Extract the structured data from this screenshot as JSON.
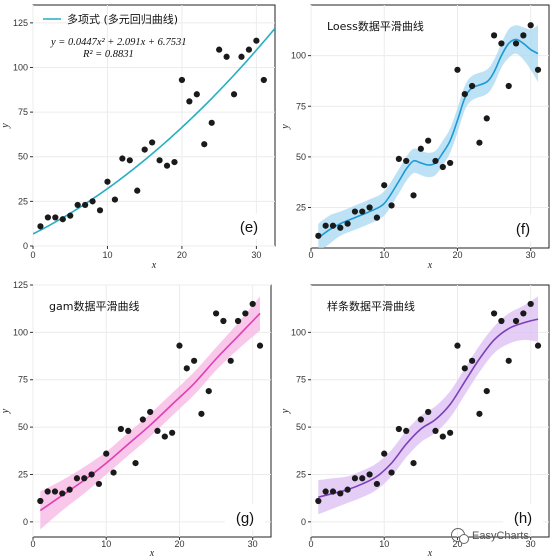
{
  "watermark": "EasyCharts",
  "chart_data": [
    {
      "type": "scatter",
      "panel_label": "(e)",
      "legend_label": "多项式 (多元回归曲线)",
      "equation": "y = 0.0447x² + 2.091x + 6.7531",
      "r_squared": "R² = 0.8831",
      "xlabel": "x",
      "ylabel": "y",
      "xlim": [
        0,
        32.5
      ],
      "ylim": [
        0,
        135
      ],
      "xticks": [
        0,
        10,
        20,
        30
      ],
      "yticks": [
        0,
        25,
        50,
        75,
        100,
        125
      ],
      "line_color": "#26aec2",
      "band_color": null,
      "fit": {
        "kind": "poly",
        "coef": [
          6.7531,
          2.091,
          0.0447
        ]
      },
      "points": {
        "x": [
          1,
          2,
          3,
          4,
          5,
          6,
          7,
          8,
          9,
          10,
          11,
          12,
          13,
          14,
          15,
          16,
          17,
          18,
          19,
          20,
          21,
          22,
          23,
          24,
          25,
          26,
          27,
          28,
          29,
          30,
          31
        ],
        "y": [
          11,
          16,
          16,
          15,
          17,
          23,
          23,
          25,
          20,
          36,
          26,
          49,
          48,
          31,
          54,
          58,
          48,
          45,
          47,
          93,
          81,
          85,
          57,
          69,
          110,
          106,
          85,
          106,
          110,
          115,
          93
        ]
      }
    },
    {
      "type": "scatter",
      "panel_label": "(f)",
      "title": "Loess数据平滑曲线",
      "xlabel": "x",
      "ylabel": "y",
      "xlim": [
        0,
        32.5
      ],
      "ylim": [
        5,
        125
      ],
      "xticks": [
        0,
        10,
        20,
        30
      ],
      "yticks": [
        25,
        50,
        75,
        100
      ],
      "line_color": "#1b9ad6",
      "band_color": "#a8d8f2",
      "fit": {
        "kind": "curve",
        "x": [
          1,
          2.5,
          4,
          6,
          8,
          10,
          12,
          13,
          14,
          15,
          16,
          17,
          18,
          19,
          20,
          21,
          22,
          24,
          25,
          26,
          27,
          28,
          29,
          30,
          31
        ],
        "y": [
          10,
          14,
          17,
          20,
          23,
          27,
          38,
          44,
          48,
          47,
          46,
          47,
          52,
          58,
          68,
          79,
          84,
          87,
          92,
          100,
          106,
          108,
          106,
          103,
          101
        ],
        "se": [
          7,
          7,
          6,
          6,
          6,
          6,
          6,
          6,
          6,
          6,
          6,
          6,
          6,
          6,
          6,
          6,
          6,
          6,
          6,
          6,
          7,
          7,
          8,
          10,
          14
        ]
      },
      "points": {
        "x": [
          1,
          2,
          3,
          4,
          5,
          6,
          7,
          8,
          9,
          10,
          11,
          12,
          13,
          14,
          15,
          16,
          17,
          18,
          19,
          20,
          21,
          22,
          23,
          24,
          25,
          26,
          27,
          28,
          29,
          30,
          31
        ],
        "y": [
          11,
          16,
          16,
          15,
          17,
          23,
          23,
          25,
          20,
          36,
          26,
          49,
          48,
          31,
          54,
          58,
          48,
          45,
          47,
          93,
          81,
          85,
          57,
          69,
          110,
          106,
          85,
          106,
          110,
          115,
          93
        ]
      }
    },
    {
      "type": "scatter",
      "panel_label": "(g)",
      "title": "gam数据平滑曲线",
      "xlabel": "x",
      "ylabel": "y",
      "xlim": [
        0,
        32.5
      ],
      "ylim": [
        -8,
        125
      ],
      "xticks": [
        0,
        10,
        20,
        30
      ],
      "yticks": [
        0,
        25,
        50,
        75,
        100,
        125
      ],
      "line_color": "#e23fb4",
      "band_color": "#f6b4e1",
      "fit": {
        "kind": "curve",
        "x": [
          1,
          4,
          7,
          10,
          13,
          16,
          19,
          22,
          25,
          28,
          31
        ],
        "y": [
          6,
          14,
          22,
          31,
          41,
          51,
          62,
          73,
          86,
          98,
          110
        ],
        "se": [
          10,
          8,
          7,
          6,
          6,
          6,
          6,
          6,
          6,
          7,
          9
        ]
      },
      "points": {
        "x": [
          1,
          2,
          3,
          4,
          5,
          6,
          7,
          8,
          9,
          10,
          11,
          12,
          13,
          14,
          15,
          16,
          17,
          18,
          19,
          20,
          21,
          22,
          23,
          24,
          25,
          26,
          27,
          28,
          29,
          30,
          31
        ],
        "y": [
          11,
          16,
          16,
          15,
          17,
          23,
          23,
          25,
          20,
          36,
          26,
          49,
          48,
          31,
          54,
          58,
          48,
          45,
          47,
          93,
          81,
          85,
          57,
          69,
          110,
          106,
          85,
          106,
          110,
          115,
          93
        ]
      }
    },
    {
      "type": "scatter",
      "panel_label": "(h)",
      "title": "样条数据平滑曲线",
      "xlabel": "x",
      "ylabel": "y",
      "xlim": [
        0,
        32.5
      ],
      "ylim": [
        -8,
        125
      ],
      "xticks": [
        0,
        10,
        20,
        30
      ],
      "yticks": [
        0,
        25,
        50,
        75,
        100
      ],
      "line_color": "#7d3fb8",
      "band_color": "#dcbdf2",
      "fit": {
        "kind": "curve",
        "x": [
          1,
          3,
          5,
          7,
          9,
          11,
          13,
          15,
          17,
          19,
          21,
          23,
          25,
          27,
          29,
          31
        ],
        "y": [
          13,
          15,
          17,
          20,
          24,
          31,
          41,
          49,
          54,
          62,
          74,
          86,
          96,
          102,
          105,
          107
        ],
        "se": [
          9,
          8,
          7,
          7,
          7,
          7,
          7,
          7,
          7,
          7,
          7,
          7,
          7,
          8,
          9,
          12
        ]
      },
      "points": {
        "x": [
          1,
          2,
          3,
          4,
          5,
          6,
          7,
          8,
          9,
          10,
          11,
          12,
          13,
          14,
          15,
          16,
          17,
          18,
          19,
          20,
          21,
          22,
          23,
          24,
          25,
          26,
          27,
          28,
          29,
          30,
          31
        ],
        "y": [
          11,
          16,
          16,
          15,
          17,
          23,
          23,
          25,
          20,
          36,
          26,
          49,
          48,
          31,
          54,
          58,
          48,
          45,
          47,
          93,
          81,
          85,
          57,
          69,
          110,
          106,
          85,
          106,
          110,
          115,
          93
        ]
      }
    }
  ]
}
